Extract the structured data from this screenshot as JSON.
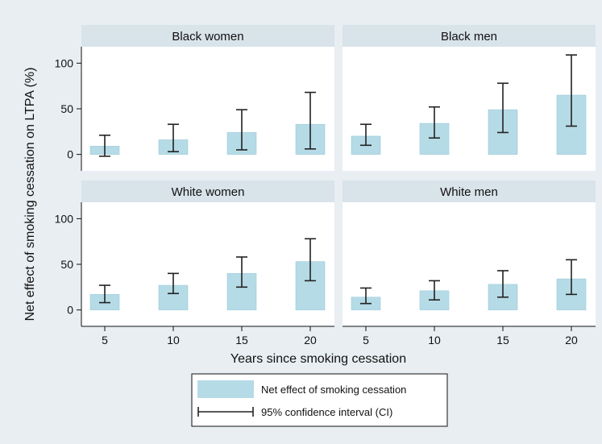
{
  "chart_data": {
    "type": "bar",
    "ylabel": "Net effect of smoking cessation on LTPA (%)",
    "xlabel": "Years since smoking cessation",
    "categories": [
      "5",
      "10",
      "15",
      "20"
    ],
    "yticks": [
      0,
      50,
      100
    ],
    "ylim": [
      -18,
      118
    ],
    "grid": false,
    "legend_position": "bottom",
    "colors": {
      "background": "#e8eef2",
      "panel": "#ffffff",
      "strip": "#d9e3ea",
      "bar": "#b5dbe6",
      "bar_edge": "#9ccadb",
      "error": "#222222"
    },
    "panels": [
      {
        "title": "Black women",
        "values": [
          9,
          16,
          24,
          33
        ],
        "ci_low": [
          -2,
          3,
          5,
          6
        ],
        "ci_high": [
          21,
          33,
          49,
          68
        ]
      },
      {
        "title": "Black men",
        "values": [
          20,
          34,
          49,
          65
        ],
        "ci_low": [
          10,
          18,
          24,
          31
        ],
        "ci_high": [
          33,
          52,
          78,
          109
        ]
      },
      {
        "title": "White women",
        "values": [
          17,
          27,
          40,
          53
        ],
        "ci_low": [
          8,
          18,
          25,
          32
        ],
        "ci_high": [
          27,
          40,
          58,
          78
        ]
      },
      {
        "title": "White men",
        "values": [
          14,
          21,
          28,
          34
        ],
        "ci_low": [
          7,
          11,
          14,
          17
        ],
        "ci_high": [
          24,
          32,
          43,
          55
        ]
      }
    ],
    "legend": {
      "bar_label": "Net effect of smoking cessation",
      "ci_label": "95% confidence interval (CI)"
    }
  }
}
